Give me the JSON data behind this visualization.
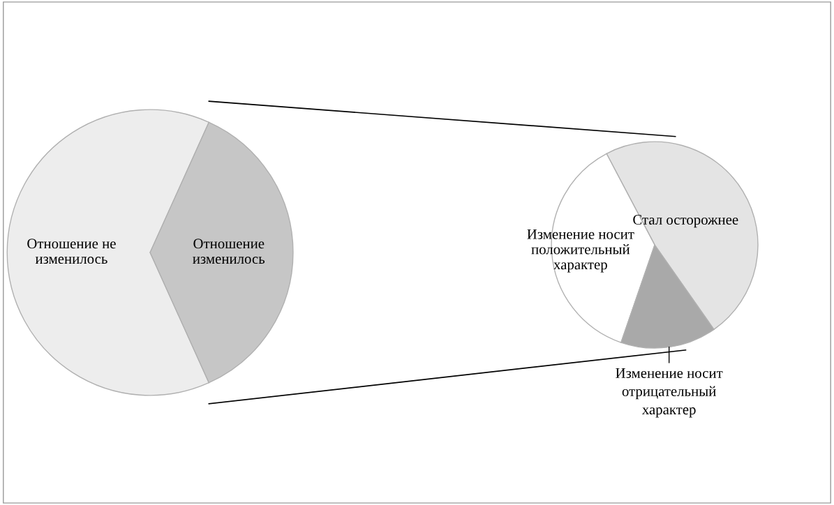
{
  "chart_data": [
    {
      "type": "pie",
      "categories": [
        "Отношение не\nизменилось",
        "Отношение\nизменилось"
      ],
      "values": [
        63.5,
        36.5
      ],
      "colors": [
        "#ededed",
        "#c6c6c6"
      ]
    },
    {
      "type": "pie",
      "categories": [
        "Стал осторожнее",
        "Изменение носит\nположительный\nхарактер",
        "Изменение носит\nотрицательный\nхарактер"
      ],
      "values": [
        48,
        37,
        15
      ],
      "colors": [
        "#e4e4e4",
        "#ffffff",
        "#a9a9a9"
      ]
    }
  ]
}
